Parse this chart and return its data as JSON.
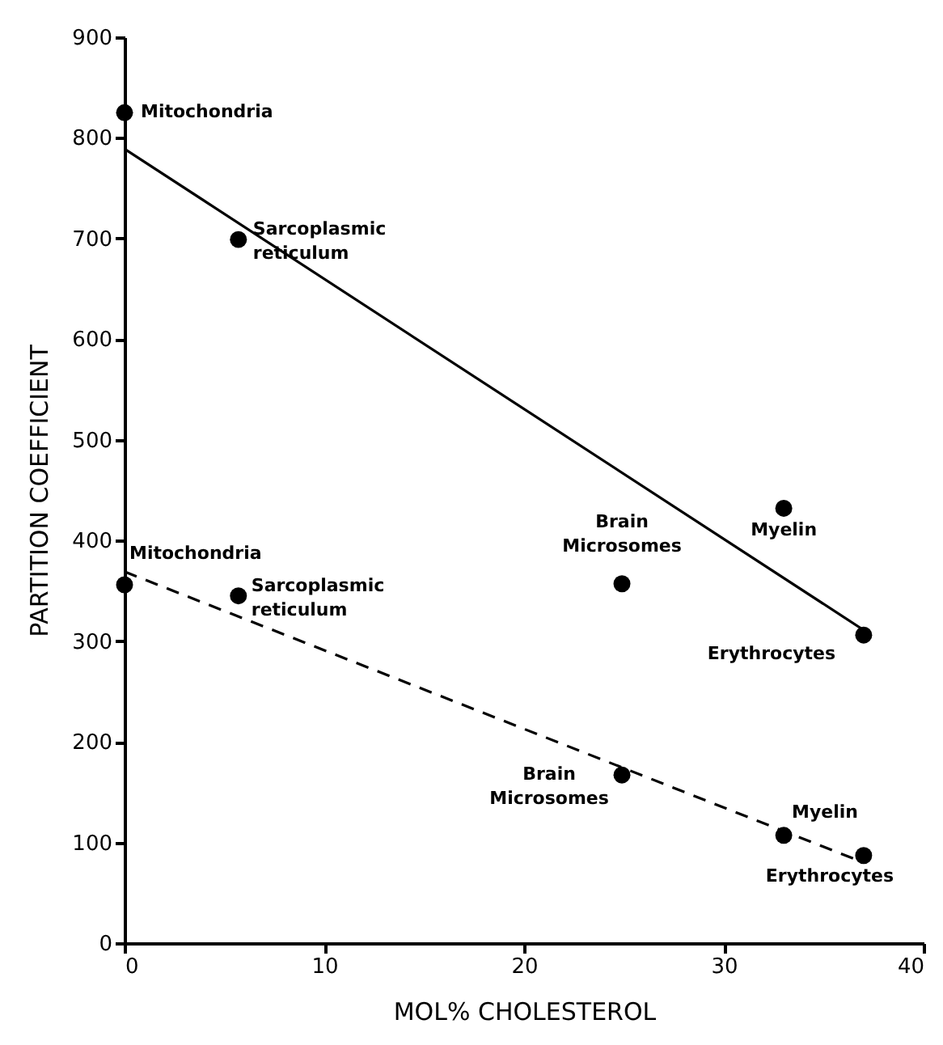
{
  "chart_data": {
    "type": "scatter",
    "xlabel": "MOL% CHOLESTEROL",
    "ylabel": "PARTITION COEFFICIENT",
    "xlim": [
      0,
      40
    ],
    "xticks": [
      0,
      10,
      20,
      30,
      40
    ],
    "ylim": [
      0,
      900
    ],
    "yticks": [
      0,
      100,
      200,
      300,
      400,
      500,
      600,
      700,
      800,
      900
    ],
    "grid": false,
    "series": [
      {
        "marker": "circle",
        "color": "#000000",
        "x": [
          0,
          5.7,
          24.9,
          33,
          37
        ],
        "values": [
          825,
          699,
          357,
          432,
          306
        ]
      },
      {
        "marker": "circle",
        "color": "#000000",
        "x": [
          0,
          5.7,
          24.9,
          33,
          37
        ],
        "values": [
          356,
          345,
          167,
          107,
          87
        ]
      },
      {
        "type": "line",
        "color": "#000000",
        "line_style": "solid",
        "x": [
          0,
          37
        ],
        "values": [
          789,
          311
        ]
      },
      {
        "type": "line",
        "color": "#000000",
        "line_style": "dashed",
        "x": [
          0,
          37
        ],
        "values": [
          369,
          80
        ]
      }
    ],
    "annotations": [
      {
        "text": "Mitochondria",
        "x": 0,
        "y": 825
      },
      {
        "text": "Sarcoplasmic reticulum",
        "x": 5.7,
        "y": 699
      },
      {
        "text": "Brain Microsomes",
        "x": 24.9,
        "y": 357
      },
      {
        "text": "Myelin",
        "x": 33,
        "y": 432
      },
      {
        "text": "Erythrocytes",
        "x": 37,
        "y": 306
      },
      {
        "text": "Mitochondria",
        "x": 0,
        "y": 356
      },
      {
        "text": "Sarcoplasmic reticulum",
        "x": 5.7,
        "y": 345
      },
      {
        "text": "Brain Microsomes",
        "x": 24.9,
        "y": 167
      },
      {
        "text": "Myelin",
        "x": 33,
        "y": 107
      },
      {
        "text": "Erythrocytes",
        "x": 37,
        "y": 87
      }
    ]
  }
}
